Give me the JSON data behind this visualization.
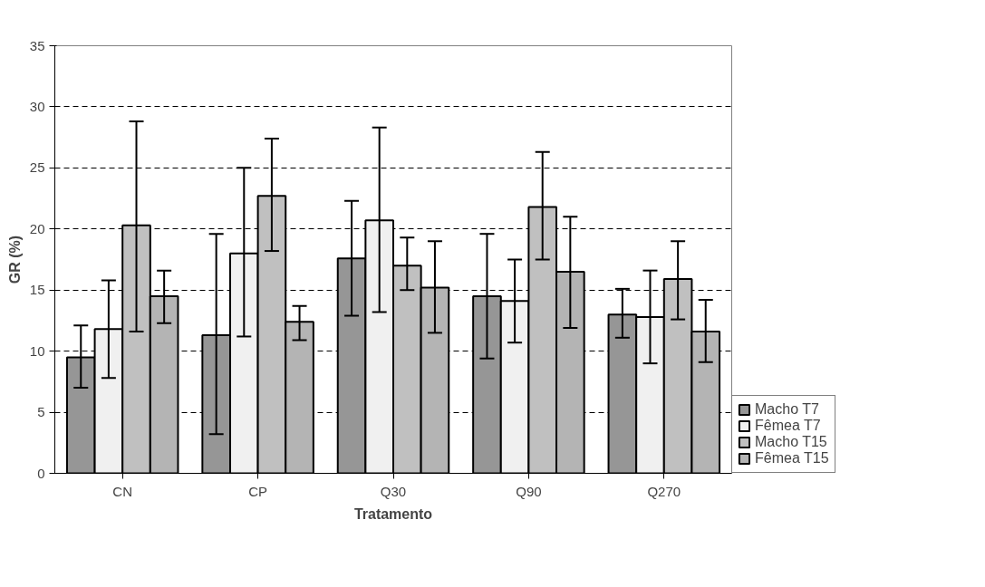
{
  "chart_data": {
    "type": "bar",
    "xlabel": "Tratamento",
    "ylabel": "GR (%)",
    "categories": [
      "CN",
      "CP",
      "Q30",
      "Q90",
      "Q270"
    ],
    "series": [
      {
        "name": "Macho T7",
        "color": "#969696",
        "values": [
          9.5,
          11.3,
          17.6,
          14.5,
          13.0
        ],
        "errors": [
          [
            7.0,
            12.1
          ],
          [
            3.2,
            19.6
          ],
          [
            12.9,
            22.3
          ],
          [
            9.4,
            19.6
          ],
          [
            11.1,
            15.1
          ]
        ]
      },
      {
        "name": "Fêmea T7",
        "color": "#f0f0f0",
        "values": [
          11.8,
          18.0,
          20.7,
          14.1,
          12.8
        ],
        "errors": [
          [
            7.8,
            15.8
          ],
          [
            11.2,
            25.0
          ],
          [
            13.2,
            28.3
          ],
          [
            10.7,
            17.5
          ],
          [
            9.0,
            16.6
          ]
        ]
      },
      {
        "name": "Macho T15",
        "color": "#c0c0c0",
        "values": [
          20.3,
          22.7,
          17.0,
          21.8,
          15.9
        ],
        "errors": [
          [
            11.6,
            28.8
          ],
          [
            18.2,
            27.4
          ],
          [
            15.0,
            19.3
          ],
          [
            17.5,
            26.3
          ],
          [
            12.6,
            19.0
          ]
        ]
      },
      {
        "name": "Fêmea T15",
        "color": "#b4b4b4",
        "values": [
          14.5,
          12.4,
          15.2,
          16.5,
          11.6
        ],
        "errors": [
          [
            12.3,
            16.6
          ],
          [
            10.9,
            13.7
          ],
          [
            11.5,
            19.0
          ],
          [
            11.9,
            21.0
          ],
          [
            9.1,
            14.2
          ]
        ]
      }
    ],
    "ylim": [
      0,
      35
    ],
    "yticks": [
      0,
      5,
      10,
      15,
      20,
      25,
      30,
      35
    ],
    "grid": "y",
    "legend": "bottom right"
  }
}
